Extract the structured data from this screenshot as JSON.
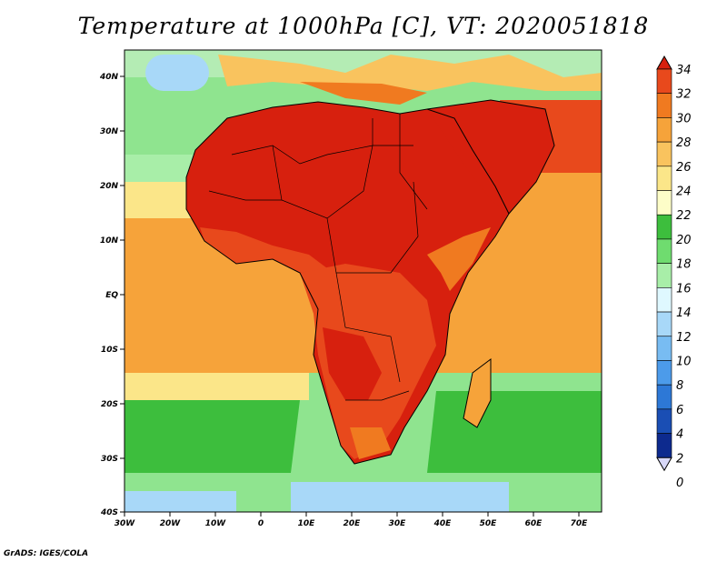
{
  "title": "Temperature at 1000hPa [C], VT: 2020051818",
  "footer": "GrADS: IGES/COLA",
  "map": {
    "variable": "Temperature",
    "level": "1000hPa",
    "units": "C",
    "valid_time": "2020051818",
    "lon_labels": [
      "30W",
      "20W",
      "10W",
      "0",
      "10E",
      "20E",
      "30E",
      "40E",
      "50E",
      "60E",
      "70E"
    ],
    "lat_labels": [
      "40N",
      "30N",
      "20N",
      "10N",
      "EQ",
      "10S",
      "20S",
      "30S",
      "40S"
    ]
  },
  "colorbar": {
    "levels": [
      "34",
      "32",
      "30",
      "28",
      "26",
      "24",
      "22",
      "20",
      "18",
      "16",
      "14",
      "12",
      "10",
      "8",
      "6",
      "4",
      "2",
      "0"
    ],
    "colors": [
      "#d7200e",
      "#e8491c",
      "#f07a20",
      "#f6a33a",
      "#f9c35e",
      "#fbe689",
      "#fdfdc8",
      "#3dbe3d",
      "#6fdc6f",
      "#a8eea8",
      "#dff8ff",
      "#a8d8f8",
      "#78bcf2",
      "#4c9bea",
      "#2d78d6",
      "#1a4eb4",
      "#0d2a8e",
      "#0a0a68"
    ]
  }
}
